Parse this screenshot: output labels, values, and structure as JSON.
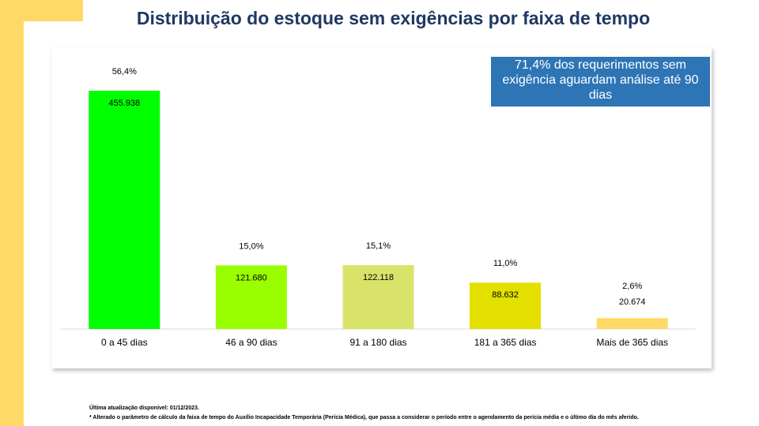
{
  "chart_data": {
    "type": "bar",
    "title": "Distribuição do estoque sem exigências por faixa de tempo",
    "categories": [
      "0 a 45 dias",
      "46 a 90 dias",
      "91 a 180 dias",
      "181 a 365 dias",
      "Mais de 365 dias"
    ],
    "values": [
      455938,
      121680,
      122118,
      88632,
      20674
    ],
    "value_labels": [
      "455.938",
      "121.680",
      "122.118",
      "88.632",
      "20.674"
    ],
    "shares": [
      56.4,
      15.0,
      15.1,
      11.0,
      2.6
    ],
    "share_labels": [
      "56,4%",
      "15,0%",
      "15,1%",
      "11,0%",
      "2,6%"
    ],
    "colors": [
      "#00ff00",
      "#99ff00",
      "#d9e36a",
      "#e3e000",
      "#ffd966"
    ],
    "annotation": "71,4% dos requerimentos sem exigência aguardam análise até 90 dias",
    "footnotes": [
      "Última atualização disponível:  01/12/2023.",
      "* Alterado o parâmetro de cálculo da faixa de tempo do Auxílio Incapacidade Temporária (Perícia Médica), que passa a considerar o período entre o agendamento da perícia média e o último dia do mês aferido."
    ]
  }
}
